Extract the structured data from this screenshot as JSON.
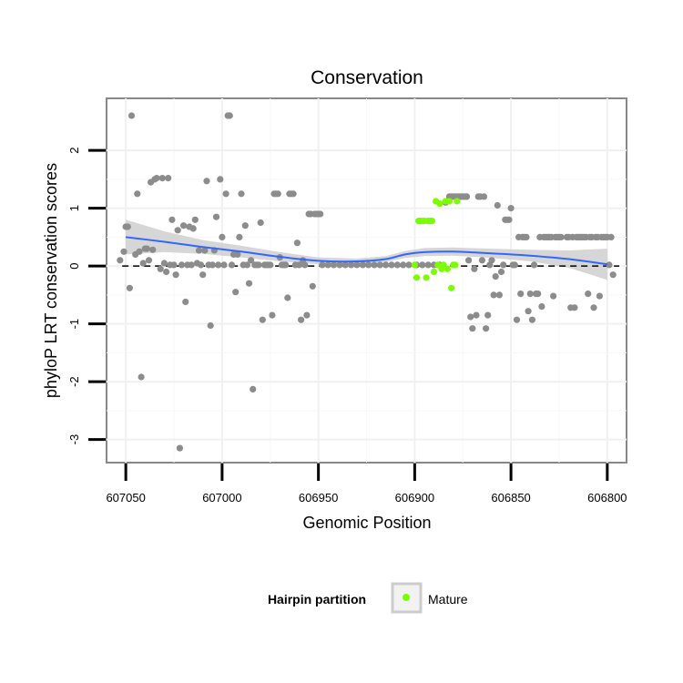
{
  "chart_data": {
    "type": "scatter",
    "title": "Conservation",
    "xlabel": "Genomic Position",
    "ylabel": "phyloP LRT conservation scores",
    "xlim": [
      607060,
      606790
    ],
    "ylim": [
      -3.4,
      2.9
    ],
    "x_reversed": true,
    "xticks": [
      607050,
      607000,
      606950,
      606900,
      606850,
      606800
    ],
    "yticks": [
      2,
      1,
      0,
      -1,
      -2,
      -3
    ],
    "grid": true,
    "reference_line": {
      "y": 0,
      "style": "dashed"
    },
    "colors": {
      "background_points": "#8c8c8c",
      "mature": "#7cfc00",
      "smooth": "#3366ff",
      "band": "#cccccc"
    },
    "legend": {
      "title": "Hairpin partition",
      "entries": [
        "Mature"
      ],
      "position": "bottom"
    },
    "series": [
      {
        "name": "Hairpin",
        "points": [
          [
            607053,
            0.1
          ],
          [
            607051,
            0.25
          ],
          [
            607050,
            0.68
          ],
          [
            607049,
            0.68
          ],
          [
            607048,
            -0.38
          ],
          [
            607047,
            2.6
          ],
          [
            607045,
            0.2
          ],
          [
            607044,
            1.25
          ],
          [
            607043,
            0.25
          ],
          [
            607042,
            -1.92
          ],
          [
            607041,
            0.05
          ],
          [
            607040,
            0.3
          ],
          [
            607039,
            0.3
          ],
          [
            607038,
            0.1
          ],
          [
            607037,
            1.45
          ],
          [
            607036,
            0.28
          ],
          [
            607035,
            1.5
          ],
          [
            607034,
            1.52
          ],
          [
            607032,
            -0.05
          ],
          [
            607031,
            1.52
          ],
          [
            607030,
            0.05
          ],
          [
            607029,
            -0.1
          ],
          [
            607028,
            1.52
          ],
          [
            607027,
            0.02
          ],
          [
            607026,
            0.8
          ],
          [
            607025,
            0.02
          ],
          [
            607024,
            -0.15
          ],
          [
            607023,
            0.62
          ],
          [
            607022,
            -3.15
          ],
          [
            607021,
            0.02
          ],
          [
            607020,
            0.7
          ],
          [
            607019,
            -0.62
          ],
          [
            607018,
            0.02
          ],
          [
            607017,
            0.68
          ],
          [
            607016,
            0.02
          ],
          [
            607015,
            0.65
          ],
          [
            607014,
            0.8
          ],
          [
            607013,
            0.05
          ],
          [
            607012,
            0.27
          ],
          [
            607011,
            0.02
          ],
          [
            607010,
            -0.15
          ],
          [
            607009,
            0.27
          ],
          [
            607008,
            1.47
          ],
          [
            607007,
            0.02
          ],
          [
            607006,
            -1.03
          ],
          [
            607005,
            0.02
          ],
          [
            607004,
            0.27
          ],
          [
            607003,
            0.85
          ],
          [
            607002,
            0.02
          ],
          [
            607001,
            1.5
          ],
          [
            607000,
            0.5
          ],
          [
            606999,
            0.02
          ],
          [
            606998,
            1.25
          ],
          [
            606997,
            2.6
          ],
          [
            606996,
            2.6
          ],
          [
            606995,
            0.02
          ],
          [
            606994,
            0.2
          ],
          [
            606993,
            -0.45
          ],
          [
            606992,
            0.2
          ],
          [
            606991,
            0.5
          ],
          [
            606990,
            1.25
          ],
          [
            606989,
            0.02
          ],
          [
            606988,
            0.7
          ],
          [
            606987,
            0.02
          ],
          [
            606986,
            -0.3
          ],
          [
            606985,
            0.1
          ],
          [
            606984,
            -2.13
          ],
          [
            606983,
            0.02
          ],
          [
            606982,
            0.02
          ],
          [
            606981,
            0.02
          ],
          [
            606980,
            0.75
          ],
          [
            606979,
            -0.93
          ],
          [
            606978,
            0.02
          ],
          [
            606977,
            0.02
          ],
          [
            606976,
            0.02
          ],
          [
            606975,
            0.02
          ],
          [
            606974,
            -0.85
          ],
          [
            606973,
            1.25
          ],
          [
            606972,
            1.25
          ],
          [
            606971,
            1.25
          ],
          [
            606970,
            0.15
          ],
          [
            606969,
            0.02
          ],
          [
            606968,
            0.02
          ],
          [
            606967,
            0.02
          ],
          [
            606966,
            -0.55
          ],
          [
            606965,
            1.25
          ],
          [
            606964,
            1.25
          ],
          [
            606963,
            1.25
          ],
          [
            606962,
            0.02
          ],
          [
            606961,
            0.4
          ],
          [
            606960,
            0.02
          ],
          [
            606959,
            -0.93
          ],
          [
            606958,
            0.1
          ],
          [
            606957,
            0.02
          ],
          [
            606956,
            -0.85
          ],
          [
            606955,
            0.9
          ],
          [
            606954,
            0.9
          ],
          [
            606953,
            -0.35
          ],
          [
            606952,
            0.9
          ],
          [
            606951,
            0.9
          ],
          [
            606950,
            0.9
          ],
          [
            606949,
            0.9
          ],
          [
            606948,
            0.02
          ],
          [
            606945,
            0.02
          ],
          [
            606942,
            0.02
          ],
          [
            606939,
            0.02
          ],
          [
            606936,
            0.02
          ],
          [
            606933,
            0.02
          ],
          [
            606930,
            0.02
          ],
          [
            606927,
            0.02
          ],
          [
            606924,
            0.02
          ],
          [
            606921,
            0.02
          ],
          [
            606918,
            0.02
          ],
          [
            606915,
            0.02
          ],
          [
            606912,
            0.02
          ],
          [
            606909,
            0.02
          ],
          [
            606906,
            0.02
          ],
          [
            606903,
            0.02
          ],
          [
            606899,
            0.02
          ],
          [
            606896,
            0.02
          ],
          [
            606893,
            0.02
          ],
          [
            606890,
            0.02
          ],
          [
            606887,
            0.02
          ],
          [
            606884,
            1.1
          ],
          [
            606882,
            1.2
          ],
          [
            606881,
            1.2
          ],
          [
            606880,
            1.2
          ],
          [
            606879,
            1.2
          ],
          [
            606878,
            1.2
          ],
          [
            606877,
            1.2
          ],
          [
            606876,
            1.2
          ],
          [
            606875,
            1.2
          ],
          [
            606874,
            1.2
          ],
          [
            606873,
            1.2
          ],
          [
            606872,
            0.1
          ],
          [
            606871,
            -0.88
          ],
          [
            606870,
            -1.08
          ],
          [
            606869,
            -0.05
          ],
          [
            606868,
            -0.85
          ],
          [
            606867,
            1.2
          ],
          [
            606866,
            1.2
          ],
          [
            606865,
            0.1
          ],
          [
            606864,
            1.2
          ],
          [
            606863,
            -1.08
          ],
          [
            606862,
            -0.85
          ],
          [
            606861,
            0.02
          ],
          [
            606860,
            0.1
          ],
          [
            606859,
            -0.5
          ],
          [
            606858,
            -0.18
          ],
          [
            606857,
            1.05
          ],
          [
            606856,
            -0.5
          ],
          [
            606855,
            -0.1
          ],
          [
            606854,
            0.02
          ],
          [
            606853,
            0.8
          ],
          [
            606852,
            0.8
          ],
          [
            606851,
            0.8
          ],
          [
            606850,
            1.0
          ],
          [
            606849,
            0.02
          ],
          [
            606848,
            0.02
          ],
          [
            606847,
            -0.93
          ],
          [
            606846,
            0.5
          ],
          [
            606845,
            -0.48
          ],
          [
            606844,
            0.5
          ],
          [
            606843,
            0.5
          ],
          [
            606842,
            0.5
          ],
          [
            606841,
            -0.78
          ],
          [
            606840,
            -0.48
          ],
          [
            606839,
            -0.93
          ],
          [
            606838,
            0.02
          ],
          [
            606837,
            -0.48
          ],
          [
            606836,
            -0.48
          ],
          [
            606835,
            0.5
          ],
          [
            606834,
            -0.7
          ],
          [
            606833,
            0.5
          ],
          [
            606832,
            0.5
          ],
          [
            606831,
            0.5
          ],
          [
            606830,
            0.5
          ],
          [
            606829,
            0.5
          ],
          [
            606828,
            -0.52
          ],
          [
            606827,
            0.5
          ],
          [
            606826,
            0.5
          ],
          [
            606825,
            0.5
          ],
          [
            606824,
            0.5
          ],
          [
            606821,
            0.5
          ],
          [
            606820,
            0.5
          ],
          [
            606819,
            -0.72
          ],
          [
            606818,
            0.5
          ],
          [
            606817,
            -0.72
          ],
          [
            606816,
            0.5
          ],
          [
            606815,
            0.5
          ],
          [
            606814,
            0.5
          ],
          [
            606813,
            0.5
          ],
          [
            606812,
            0.5
          ],
          [
            606811,
            0.5
          ],
          [
            606810,
            -0.48
          ],
          [
            606809,
            0.5
          ],
          [
            606808,
            0.5
          ],
          [
            606807,
            -0.72
          ],
          [
            606806,
            0.5
          ],
          [
            606805,
            0.5
          ],
          [
            606804,
            -0.52
          ],
          [
            606803,
            0.5
          ],
          [
            606802,
            0.5
          ],
          [
            606801,
            0.5
          ],
          [
            606800,
            0.5
          ],
          [
            606799,
            0.02
          ],
          [
            606798,
            0.5
          ],
          [
            606797,
            -0.15
          ]
        ]
      },
      {
        "name": "Mature",
        "points": [
          [
            606900,
            0.02
          ],
          [
            606899,
            -0.2
          ],
          [
            606898,
            0.78
          ],
          [
            606897,
            0.78
          ],
          [
            606896,
            0.78
          ],
          [
            606895,
            0.78
          ],
          [
            606894,
            -0.2
          ],
          [
            606893,
            0.78
          ],
          [
            606892,
            0.78
          ],
          [
            606891,
            0.78
          ],
          [
            606890,
            -0.1
          ],
          [
            606889,
            1.12
          ],
          [
            606888,
            0.02
          ],
          [
            606887,
            1.08
          ],
          [
            606886,
            -0.05
          ],
          [
            606885,
            0.02
          ],
          [
            606884,
            1.12
          ],
          [
            606883,
            -0.05
          ],
          [
            606882,
            1.12
          ],
          [
            606881,
            -0.38
          ],
          [
            606880,
            0.02
          ],
          [
            606879,
            0.02
          ],
          [
            606878,
            1.12
          ]
        ]
      }
    ],
    "smooth_fit": {
      "x": [
        607050,
        607030,
        607010,
        606990,
        606970,
        606950,
        606930,
        606915,
        606905,
        606895,
        606880,
        606860,
        606840,
        606820,
        606800
      ],
      "y": [
        0.5,
        0.42,
        0.33,
        0.25,
        0.16,
        0.09,
        0.08,
        0.12,
        0.2,
        0.24,
        0.25,
        0.22,
        0.18,
        0.12,
        0.03
      ],
      "band_upper": [
        0.8,
        0.6,
        0.45,
        0.35,
        0.24,
        0.15,
        0.13,
        0.17,
        0.26,
        0.31,
        0.32,
        0.3,
        0.28,
        0.27,
        0.3
      ],
      "band_lower": [
        0.2,
        0.24,
        0.21,
        0.15,
        0.08,
        0.03,
        0.03,
        0.07,
        0.14,
        0.17,
        0.18,
        0.14,
        0.08,
        -0.03,
        -0.24
      ]
    }
  }
}
